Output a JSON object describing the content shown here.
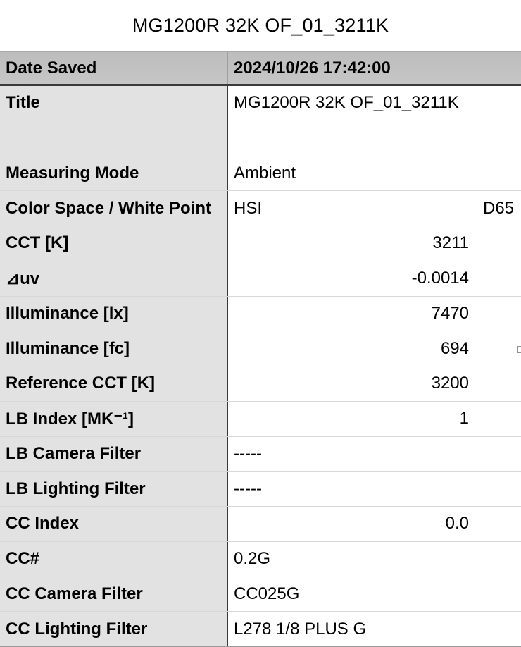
{
  "page_title": "MG1200R 32K OF_01_3211K",
  "colors": {
    "header_bg": "#c2c2c2",
    "label_column_bg": "#e2e2e2",
    "dark_divider": "#3a3a3a",
    "light_divider": "#d8d8d8",
    "text": "#000000"
  },
  "table": {
    "header": {
      "label": "Date Saved",
      "value": "2024/10/26 17:42:00"
    },
    "rows": [
      {
        "label": "Title",
        "value": "MG1200R 32K OF_01_3211K",
        "unit": "",
        "align": "left"
      },
      {
        "label": "",
        "value": "",
        "unit": "",
        "align": "left"
      },
      {
        "label": "Measuring Mode",
        "value": "Ambient",
        "unit": "",
        "align": "left"
      },
      {
        "label": "Color Space / White Point",
        "value": "HSI",
        "unit": "D65",
        "align": "left"
      },
      {
        "label": "CCT [K]",
        "value": "3211",
        "unit": "",
        "align": "right"
      },
      {
        "label": "⊿uv",
        "value": "-0.0014",
        "unit": "",
        "align": "right"
      },
      {
        "label": "Illuminance [lx]",
        "value": "7470",
        "unit": "",
        "align": "right"
      },
      {
        "label": "Illuminance [fc]",
        "value": "694",
        "unit": "",
        "align": "right"
      },
      {
        "label": "Reference CCT [K]",
        "value": "3200",
        "unit": "",
        "align": "right"
      },
      {
        "label": "LB Index [MK⁻¹]",
        "value": "1",
        "unit": "",
        "align": "right"
      },
      {
        "label": "LB Camera Filter",
        "value": "-----",
        "unit": "",
        "align": "left"
      },
      {
        "label": "LB Lighting Filter",
        "value": "-----",
        "unit": "",
        "align": "left"
      },
      {
        "label": "CC Index",
        "value": "0.0",
        "unit": "",
        "align": "right"
      },
      {
        "label": "CC#",
        "value": "0.2G",
        "unit": "",
        "align": "left"
      },
      {
        "label": "CC Camera Filter",
        "value": "CC025G",
        "unit": "",
        "align": "left"
      },
      {
        "label": "CC Lighting Filter",
        "value": "L278 1/8 PLUS G",
        "unit": "",
        "align": "left"
      }
    ]
  }
}
